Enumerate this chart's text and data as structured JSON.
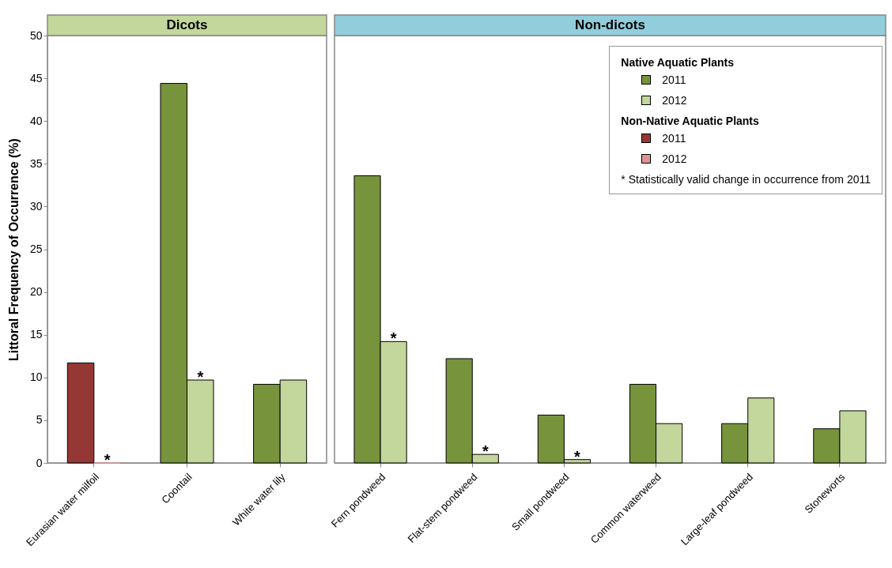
{
  "chart_data": [
    {
      "type": "bar",
      "title": "Dicots",
      "ylabel": "Littoral Frequency of Occurrence (%)",
      "categories": [
        "Eurasian water milfoil",
        "Coontail",
        "White water lily"
      ],
      "series": [
        {
          "color": "#77933c",
          "values": [
            null,
            44.4,
            9.2
          ]
        },
        {
          "color": "#c3d69b",
          "values": [
            null,
            9.7,
            9.7
          ]
        },
        {
          "color": "#953735",
          "values": [
            11.7,
            null,
            null
          ]
        },
        {
          "color": "#d99694",
          "values": [
            0,
            null,
            null
          ]
        }
      ],
      "ylim": [
        0,
        50
      ],
      "yticks": [
        0,
        5,
        10,
        15,
        20,
        25,
        30,
        35,
        40,
        45,
        50
      ],
      "grid": false,
      "annotations": [
        {
          "text": "*",
          "x": "Eurasian water milfoil",
          "y": 0
        },
        {
          "text": "*",
          "x": "Coontail",
          "y": 9.7
        }
      ]
    },
    {
      "type": "bar",
      "title": "Non-dicots",
      "categories": [
        "Fern pondweed",
        "Flat-stem pondweed",
        "Small pondweed",
        "Common waterweed",
        "Large-leaf pondweed",
        "Stoneworts"
      ],
      "series": [
        {
          "name": "2011",
          "color": "#77933c",
          "values": [
            33.6,
            12.2,
            5.6,
            9.2,
            4.6,
            4.0
          ]
        },
        {
          "name": "2012",
          "color": "#c3d69b",
          "values": [
            14.2,
            1.0,
            0.4,
            4.6,
            7.6,
            6.1
          ]
        },
        {
          "name": "2011",
          "color": "#953735",
          "values": [
            null,
            null,
            null,
            null,
            null,
            null
          ]
        },
        {
          "name": "2012",
          "color": "#d99694",
          "values": [
            null,
            null,
            null,
            null,
            null,
            null
          ]
        }
      ],
      "ylim": [
        0,
        50
      ],
      "yticks": [
        0,
        5,
        10,
        15,
        20,
        25,
        30,
        35,
        40,
        45,
        50
      ],
      "grid": false,
      "tick_labels": "x",
      "legend": "top right",
      "annotations": [
        "Native Aquatic Plants",
        "Non-Native Aquatic Plants",
        "* Statistically valid change in occurrence from 2011",
        {
          "text": "*",
          "x": "Fern pondweed",
          "y": 14.2
        },
        {
          "text": "*",
          "x": "Flat-stem pondweed",
          "y": 1.0
        },
        {
          "text": "*",
          "x": "Small pondweed",
          "y": 0.4
        }
      ]
    }
  ]
}
